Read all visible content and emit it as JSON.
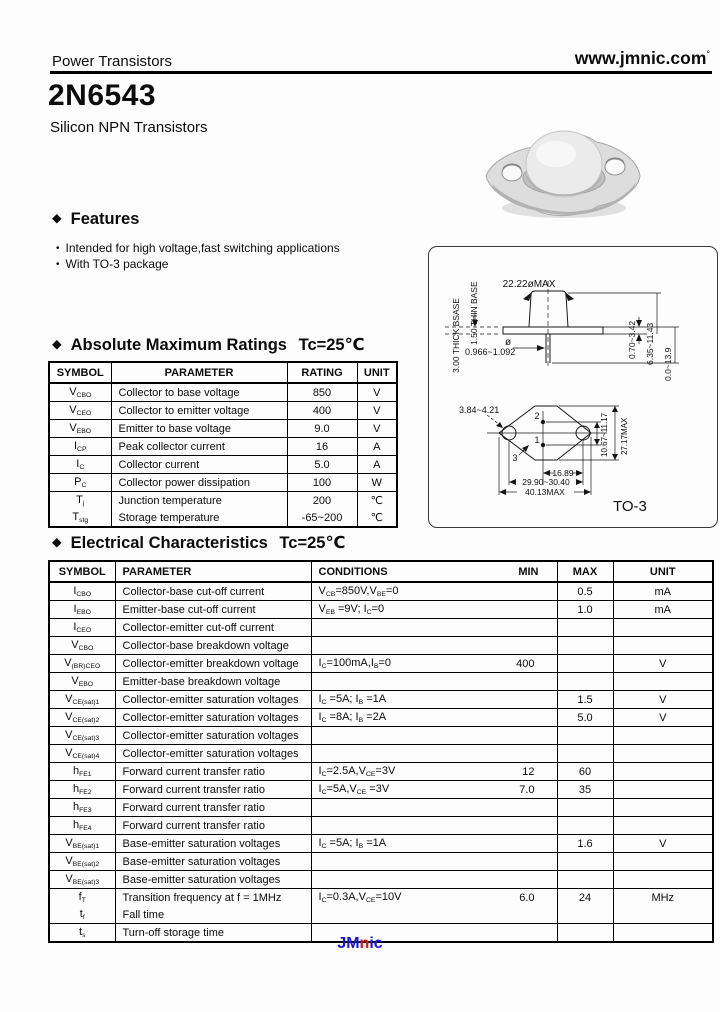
{
  "header": {
    "category": "Power Transistors",
    "website": "www.jmnic.com",
    "artifact": "°"
  },
  "product": {
    "part": "2N6543",
    "family": "Silicon NPN Transistors"
  },
  "features": {
    "icon": "◆",
    "title": "Features",
    "bullet_char": "•",
    "items": [
      "Intended for high voltage,fast switching applications",
      "With TO-3 package"
    ]
  },
  "amr": {
    "icon": "◆",
    "title": "Absolute Maximum Ratings",
    "tc": "Tc=25℃",
    "columns": [
      "SYMBOL",
      "PARAMETER",
      "RATING",
      "UNIT"
    ],
    "rows": [
      {
        "sym": "V_{CBO}",
        "param": "Collector to base voltage",
        "rating": "850",
        "unit": "V"
      },
      {
        "sym": "V_{CEO}",
        "param": "Collector to emitter voltage",
        "rating": "400",
        "unit": "V"
      },
      {
        "sym": "V_{EBO}",
        "param": "Emitter to base voltage",
        "rating": "9.0",
        "unit": "V"
      },
      {
        "sym": "I_{CP}",
        "param": "Peak collector current",
        "rating": "16",
        "unit": "A"
      },
      {
        "sym": "I_{C}",
        "param": "Collector current",
        "rating": "5.0",
        "unit": "A"
      },
      {
        "sym": "P_{C}",
        "param": "Collector power dissipation",
        "rating": "100",
        "unit": "W"
      },
      {
        "sym": "T_{j}",
        "param": "Junction temperature",
        "rating": "200",
        "unit": "℃"
      },
      {
        "sym": "T_{stg}",
        "param": "Storage temperature",
        "rating": "-65~200",
        "unit": "℃",
        "nb": true
      }
    ]
  },
  "ec": {
    "icon": "◆",
    "title": "Electrical Characteristics",
    "tc": "Tc=25℃",
    "columns": [
      "SYMBOL",
      "PARAMETER",
      "CONDITIONS",
      "MIN",
      "MAX",
      "UNIT"
    ],
    "rows": [
      {
        "sym": "I_{CBO}",
        "param": "Collector-base cut-off current",
        "cond": "V_{CB}=850V,V_{BE}=0",
        "min": "",
        "max": "0.5",
        "unit": "mA"
      },
      {
        "sym": "I_{EBO}",
        "param": "Emitter-base cut-off current",
        "cond": "V_{EB} =9V; I_{C}=0",
        "min": "",
        "max": "1.0",
        "unit": "mA"
      },
      {
        "sym": "I_{CEO}",
        "param": "Collector-emitter cut-off current",
        "cond": "",
        "min": "",
        "max": "",
        "unit": ""
      },
      {
        "sym": "V_{CBO}",
        "param": "Collector-base breakdown voltage",
        "cond": "",
        "min": "",
        "max": "",
        "unit": ""
      },
      {
        "sym": "V_{(BR)CEO}",
        "param": "Collector-emitter breakdown voltage",
        "cond": "I_{C}=100mA,I_{B}=0",
        "min": "400",
        "max": "",
        "unit": "V"
      },
      {
        "sym": "V_{EBO}",
        "param": "Emitter-base breakdown voltage",
        "cond": "",
        "min": "",
        "max": "",
        "unit": ""
      },
      {
        "sym": "V_{CE(sat)1}",
        "param": "Collector-emitter saturation voltages",
        "cond": "I_{C} =5A; I_{B} =1A",
        "min": "",
        "max": "1.5",
        "unit": "V"
      },
      {
        "sym": "V_{CE(sat)2}",
        "param": "Collector-emitter saturation voltages",
        "cond": "I_{C} =8A; I_{B} =2A",
        "min": "",
        "max": "5.0",
        "unit": "V"
      },
      {
        "sym": "V_{CE(sat)3}",
        "param": "Collector-emitter saturation voltages",
        "cond": "",
        "min": "",
        "max": "",
        "unit": ""
      },
      {
        "sym": "V_{CE(sat)4}",
        "param": "Collector-emitter saturation voltages",
        "cond": "",
        "min": "",
        "max": "",
        "unit": ""
      },
      {
        "sym": "h_{FE1}",
        "param": "Forward current transfer ratio",
        "cond": "I_{C}=2.5A,V_{CE}=3V",
        "min": "12",
        "max": "60",
        "unit": ""
      },
      {
        "sym": "h_{FE2}",
        "param": "Forward current transfer ratio",
        "cond": "I_{C}=5A,V_{CE} =3V",
        "min": "7.0",
        "max": "35",
        "unit": ""
      },
      {
        "sym": "h_{FE3}",
        "param": "Forward current transfer ratio",
        "cond": "",
        "min": "",
        "max": "",
        "unit": ""
      },
      {
        "sym": "h_{FE4}",
        "param": "Forward current transfer ratio",
        "cond": "",
        "min": "",
        "max": "",
        "unit": ""
      },
      {
        "sym": "V_{BE(sat)1}",
        "param": "Base-emitter saturation voltages",
        "cond": "I_{C} =5A; I_{B} =1A",
        "min": "",
        "max": "1.6",
        "unit": "V"
      },
      {
        "sym": "V_{BE(sat)2}",
        "param": "Base-emitter saturation voltages",
        "cond": "",
        "min": "",
        "max": "",
        "unit": ""
      },
      {
        "sym": "V_{BE(sat)3}",
        "param": "Base-emitter saturation voltages",
        "cond": "",
        "min": "",
        "max": "",
        "unit": ""
      },
      {
        "sym": "f_{T}",
        "param": "Transition frequency at  f = 1MHz",
        "cond": "I_{C}=0.3A,V_{CE}=10V",
        "min": "6.0",
        "max": "24",
        "unit": "MHz"
      },
      {
        "sym": "t_{f}",
        "param": "Fall time",
        "cond": "",
        "min": "",
        "max": "",
        "unit": "",
        "nb": true
      },
      {
        "sym": "t_{s}",
        "param": "Turn-off storage time",
        "cond": "",
        "min": "",
        "max": "",
        "unit": ""
      }
    ]
  },
  "package": {
    "name": "TO-3",
    "side": {
      "top_dia": "22.22øMAX",
      "thick_base": "3.00 THICK BSASE",
      "thin_base": "1.50 THIN BASE",
      "lead_dia_sym": "ø",
      "lead_dia": "0.966~1.092",
      "dim_a": "0.70~3.42",
      "dim_b": "6.35~11.43",
      "dim_c": "0.0~13.9"
    },
    "bottom": {
      "hole_dia": "3.84~4.21",
      "pin1": "1",
      "pin2": "2",
      "pin3": "3",
      "pin_pitch": "10.67~11.17",
      "height_max": "27.17MAX",
      "dim_center": "16.89",
      "dim_holes": "29.90~30.40",
      "dim_width": "40.13MAX"
    }
  },
  "footer": {
    "jm": "JM",
    "n": "n",
    "ic": "ic",
    "blue": "#1a16d8",
    "red": "#d81616"
  }
}
